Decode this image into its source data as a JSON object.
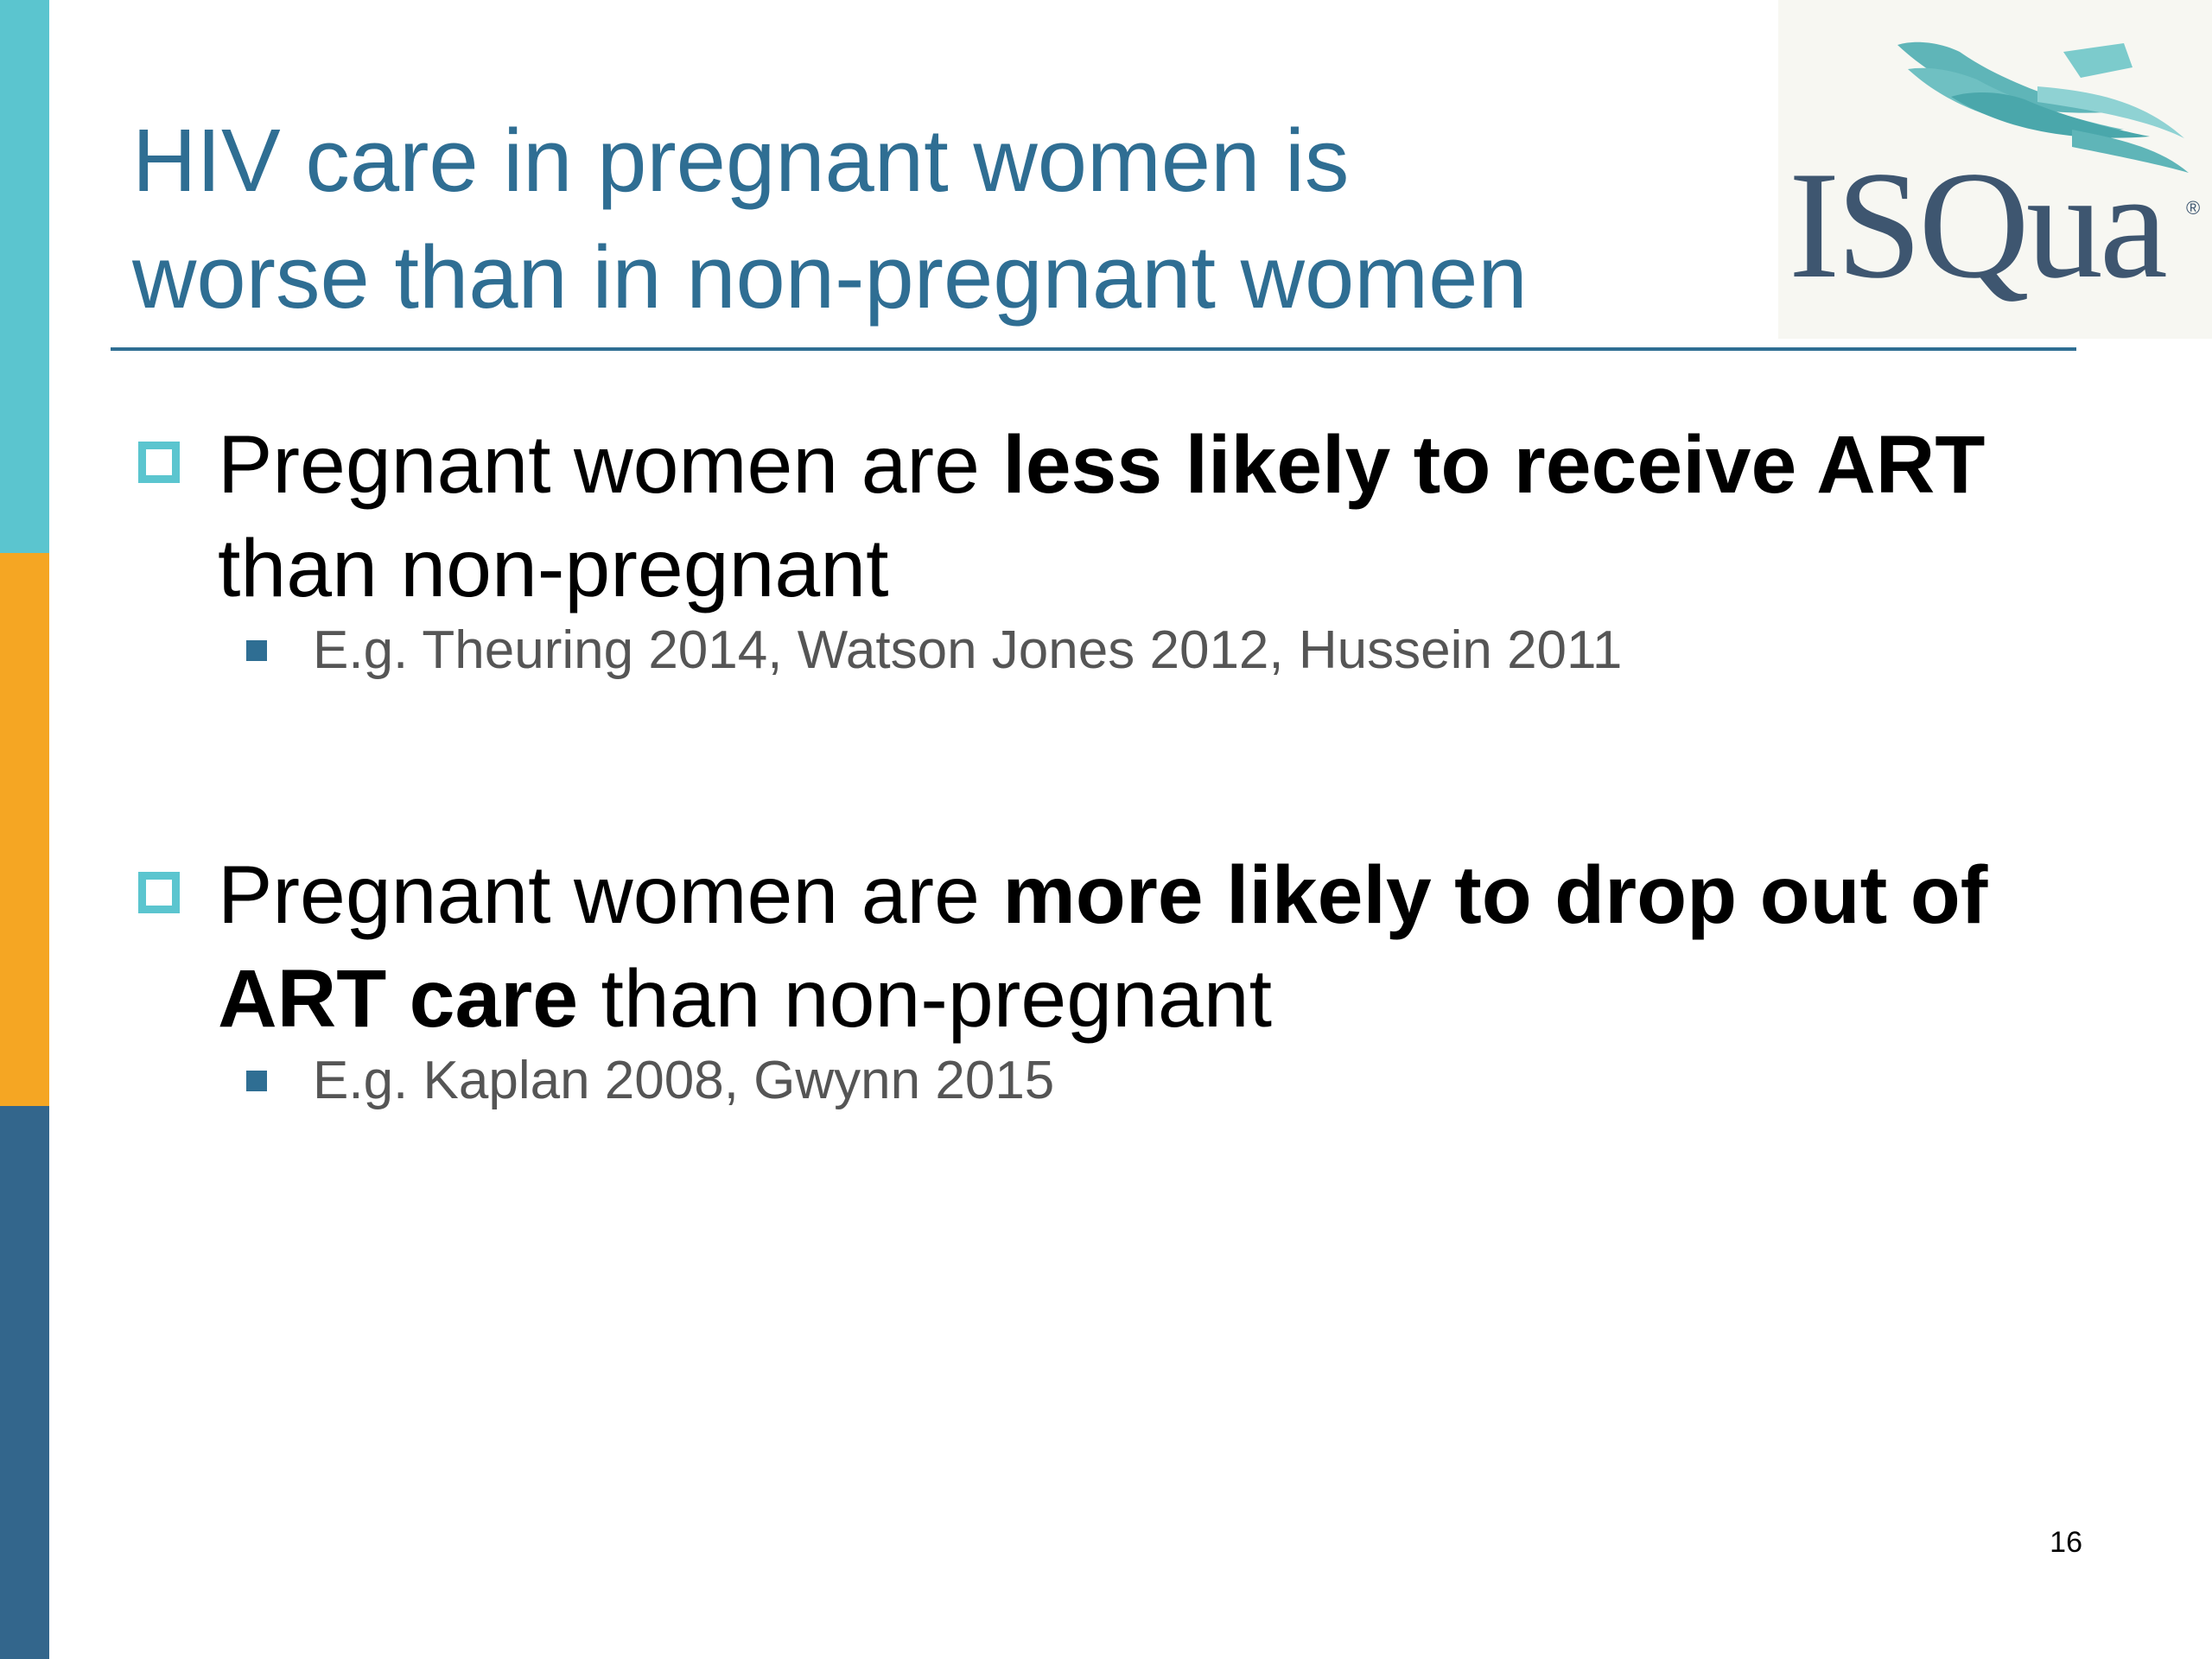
{
  "slide": {
    "title_line1": "HIV care in pregnant women is",
    "title_line2": "worse than in non-pregnant women",
    "logo": {
      "text": "ISQua",
      "registered_mark": "®"
    },
    "bullets": [
      {
        "text_before": "Pregnant women are ",
        "text_bold": "less likely to receive ART",
        "text_after": " than non-pregnant",
        "sub": "E.g. Theuring 2014, Watson Jones 2012, Hussein 2011"
      },
      {
        "text_before": "Pregnant women are ",
        "text_bold": "more likely to drop out of ART care",
        "text_after": " than non-pregnant",
        "sub": "E.g. Kaplan 2008, Gwynn 2015"
      }
    ],
    "page_number": "16"
  },
  "colors": {
    "title": "#2f6e93",
    "side_bar_teal": "#5bc5cf",
    "side_bar_orange": "#f5a623",
    "side_bar_blue": "#33668c",
    "bullet_box": "#5bc5cf",
    "sub_bullet": "#2f6e93"
  }
}
